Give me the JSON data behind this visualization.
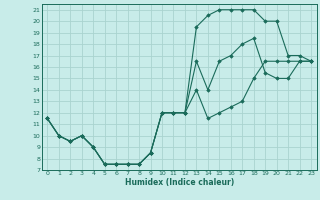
{
  "xlabel": "Humidex (Indice chaleur)",
  "background_color": "#c8ece9",
  "grid_color": "#aad4cf",
  "line_color": "#1a6b5a",
  "xlim": [
    -0.5,
    23.5
  ],
  "ylim": [
    7,
    21.5
  ],
  "xticks": [
    0,
    1,
    2,
    3,
    4,
    5,
    6,
    7,
    8,
    9,
    10,
    11,
    12,
    13,
    14,
    15,
    16,
    17,
    18,
    19,
    20,
    21,
    22,
    23
  ],
  "yticks": [
    7,
    8,
    9,
    10,
    11,
    12,
    13,
    14,
    15,
    16,
    17,
    18,
    19,
    20,
    21
  ],
  "line1_x": [
    0,
    1,
    2,
    3,
    4,
    5,
    6,
    7,
    8,
    9,
    10,
    11,
    12,
    13,
    14,
    15,
    16,
    17,
    18,
    19,
    20,
    21,
    22,
    23
  ],
  "line1_y": [
    11.5,
    10.0,
    9.5,
    10.0,
    9.0,
    7.5,
    7.5,
    7.5,
    7.5,
    8.5,
    12.0,
    12.0,
    12.0,
    14.0,
    11.5,
    12.0,
    12.5,
    13.0,
    15.0,
    16.5,
    16.5,
    16.5,
    16.5,
    16.5
  ],
  "line2_x": [
    0,
    1,
    2,
    3,
    4,
    5,
    6,
    7,
    8,
    9,
    10,
    11,
    12,
    13,
    14,
    15,
    16,
    17,
    18,
    19,
    20,
    21,
    22,
    23
  ],
  "line2_y": [
    11.5,
    10.0,
    9.5,
    10.0,
    9.0,
    7.5,
    7.5,
    7.5,
    7.5,
    8.5,
    12.0,
    12.0,
    12.0,
    19.5,
    20.5,
    21.0,
    21.0,
    21.0,
    21.0,
    20.0,
    20.0,
    17.0,
    17.0,
    16.5
  ],
  "line3_x": [
    0,
    1,
    2,
    3,
    4,
    5,
    6,
    7,
    8,
    9,
    10,
    11,
    12,
    13,
    14,
    15,
    16,
    17,
    18,
    19,
    20,
    21,
    22,
    23
  ],
  "line3_y": [
    11.5,
    10.0,
    9.5,
    10.0,
    9.0,
    7.5,
    7.5,
    7.5,
    7.5,
    8.5,
    12.0,
    12.0,
    12.0,
    16.5,
    14.0,
    16.5,
    17.0,
    18.0,
    18.5,
    15.5,
    15.0,
    15.0,
    16.5,
    16.5
  ]
}
